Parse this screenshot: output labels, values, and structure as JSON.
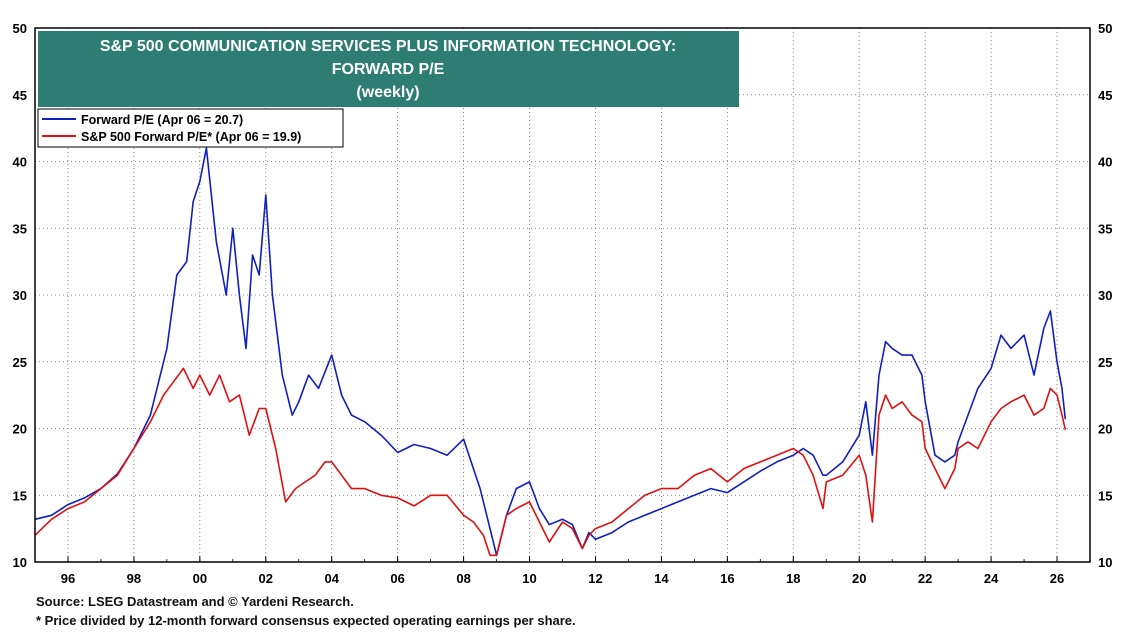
{
  "chart_data": {
    "type": "line",
    "title": "S&P 500 COMMUNICATION SERVICES PLUS INFORMATION TECHNOLOGY:",
    "title_line2": "FORWARD P/E",
    "subtitle": "(weekly)",
    "xlabel": "",
    "ylabel": "",
    "ylim": [
      10,
      50
    ],
    "xlim": [
      1995.0,
      2027.0
    ],
    "y_ticks": [
      "10",
      "15",
      "20",
      "25",
      "30",
      "35",
      "40",
      "45",
      "50"
    ],
    "x_ticks": [
      "96",
      "98",
      "00",
      "02",
      "04",
      "06",
      "08",
      "10",
      "12",
      "14",
      "16",
      "18",
      "20",
      "22",
      "24",
      "26"
    ],
    "x_tick_years": [
      1996,
      1998,
      2000,
      2002,
      2004,
      2006,
      2008,
      2010,
      2012,
      2014,
      2016,
      2018,
      2020,
      2022,
      2024,
      2026
    ],
    "grid": true,
    "legend_position": "top-left",
    "title_box_color": "#2e7d72",
    "series": [
      {
        "name": "Forward P/E  (Apr 06 = 20.7)",
        "color": "#1020c0",
        "x": [
          1995.0,
          1995.5,
          1996.0,
          1996.5,
          1997.0,
          1997.5,
          1998.0,
          1998.5,
          1999.0,
          1999.3,
          1999.6,
          1999.8,
          2000.0,
          2000.2,
          2000.5,
          2000.8,
          2001.0,
          2001.2,
          2001.4,
          2001.6,
          2001.8,
          2002.0,
          2002.2,
          2002.5,
          2002.8,
          2003.0,
          2003.3,
          2003.6,
          2004.0,
          2004.3,
          2004.6,
          2005.0,
          2005.5,
          2006.0,
          2006.5,
          2007.0,
          2007.5,
          2008.0,
          2008.5,
          2008.8,
          2009.0,
          2009.3,
          2009.6,
          2010.0,
          2010.3,
          2010.6,
          2011.0,
          2011.3,
          2011.6,
          2011.8,
          2012.0,
          2012.5,
          2013.0,
          2013.5,
          2014.0,
          2014.5,
          2015.0,
          2015.5,
          2016.0,
          2016.5,
          2017.0,
          2017.5,
          2018.0,
          2018.3,
          2018.6,
          2018.9,
          2019.0,
          2019.5,
          2020.0,
          2020.2,
          2020.4,
          2020.6,
          2020.8,
          2021.0,
          2021.3,
          2021.6,
          2021.9,
          2022.0,
          2022.3,
          2022.6,
          2022.9,
          2023.0,
          2023.3,
          2023.6,
          2024.0,
          2024.3,
          2024.6,
          2025.0,
          2025.3,
          2025.6,
          2025.8,
          2026.0,
          2026.15,
          2026.25
        ],
        "values": [
          13.2,
          13.5,
          14.3,
          14.8,
          15.5,
          16.6,
          18.5,
          21.0,
          26.0,
          31.5,
          32.5,
          37.0,
          38.5,
          41.0,
          34.0,
          30.0,
          35.0,
          30.0,
          26.0,
          33.0,
          31.5,
          37.5,
          30.0,
          24.0,
          21.0,
          22.0,
          24.0,
          23.0,
          25.5,
          22.5,
          21.0,
          20.5,
          19.5,
          18.2,
          18.8,
          18.5,
          18.0,
          19.2,
          15.5,
          12.5,
          10.5,
          13.5,
          15.5,
          16.0,
          14.0,
          12.8,
          13.2,
          12.8,
          11.0,
          12.2,
          11.7,
          12.2,
          13.0,
          13.5,
          14.0,
          14.5,
          15.0,
          15.5,
          15.2,
          16.0,
          16.8,
          17.5,
          18.0,
          18.5,
          18.0,
          16.5,
          16.5,
          17.5,
          19.5,
          22.0,
          18.0,
          24.0,
          26.5,
          26.0,
          25.5,
          25.5,
          24.0,
          22.0,
          18.0,
          17.5,
          18.0,
          19.0,
          21.0,
          23.0,
          24.5,
          27.0,
          26.0,
          27.0,
          24.0,
          27.5,
          28.8,
          25.0,
          23.0,
          20.7
        ]
      },
      {
        "name": "S&P 500 Forward P/E* (Apr 06 = 19.9)",
        "color": "#e01010",
        "x": [
          1995.0,
          1995.5,
          1996.0,
          1996.5,
          1997.0,
          1997.5,
          1998.0,
          1998.5,
          1998.9,
          1999.2,
          1999.5,
          1999.8,
          2000.0,
          2000.3,
          2000.6,
          2000.9,
          2001.2,
          2001.5,
          2001.8,
          2002.0,
          2002.3,
          2002.6,
          2002.9,
          2003.2,
          2003.5,
          2003.8,
          2004.0,
          2004.3,
          2004.6,
          2005.0,
          2005.5,
          2006.0,
          2006.5,
          2007.0,
          2007.5,
          2008.0,
          2008.3,
          2008.6,
          2008.8,
          2009.0,
          2009.3,
          2009.6,
          2010.0,
          2010.3,
          2010.6,
          2011.0,
          2011.3,
          2011.6,
          2011.8,
          2012.0,
          2012.5,
          2013.0,
          2013.5,
          2014.0,
          2014.5,
          2015.0,
          2015.5,
          2016.0,
          2016.5,
          2017.0,
          2017.5,
          2018.0,
          2018.3,
          2018.6,
          2018.9,
          2019.0,
          2019.5,
          2020.0,
          2020.2,
          2020.4,
          2020.6,
          2020.8,
          2021.0,
          2021.3,
          2021.6,
          2021.9,
          2022.0,
          2022.3,
          2022.6,
          2022.9,
          2023.0,
          2023.3,
          2023.6,
          2024.0,
          2024.3,
          2024.6,
          2025.0,
          2025.3,
          2025.6,
          2025.8,
          2026.0,
          2026.15,
          2026.25
        ],
        "values": [
          12.0,
          13.2,
          14.0,
          14.5,
          15.5,
          16.5,
          18.5,
          20.5,
          22.5,
          23.5,
          24.5,
          23.0,
          24.0,
          22.5,
          24.0,
          22.0,
          22.5,
          19.5,
          21.5,
          21.5,
          18.5,
          14.5,
          15.5,
          16.0,
          16.5,
          17.5,
          17.5,
          16.5,
          15.5,
          15.5,
          15.0,
          14.8,
          14.2,
          15.0,
          15.0,
          13.5,
          13.0,
          12.0,
          10.5,
          10.5,
          13.5,
          14.0,
          14.5,
          13.0,
          11.5,
          13.0,
          12.5,
          11.0,
          12.0,
          12.5,
          13.0,
          14.0,
          15.0,
          15.5,
          15.5,
          16.5,
          17.0,
          16.0,
          17.0,
          17.5,
          18.0,
          18.5,
          18.0,
          16.5,
          14.0,
          16.0,
          16.5,
          18.0,
          16.5,
          13.0,
          21.0,
          22.5,
          21.5,
          22.0,
          21.0,
          20.5,
          18.5,
          17.0,
          15.5,
          17.0,
          18.5,
          19.0,
          18.5,
          20.5,
          21.5,
          22.0,
          22.5,
          21.0,
          21.5,
          23.0,
          22.5,
          21.0,
          19.9
        ]
      }
    ]
  },
  "legend": {
    "entry1": "Forward P/E  (Apr 06 = 20.7)",
    "entry2": "S&P 500 Forward P/E* (Apr 06 = 19.9)"
  },
  "footer": {
    "source": "Source: LSEG Datastream and © Yardeni Research.",
    "note": "* Price divided by 12-month forward consensus expected operating earnings per share."
  }
}
